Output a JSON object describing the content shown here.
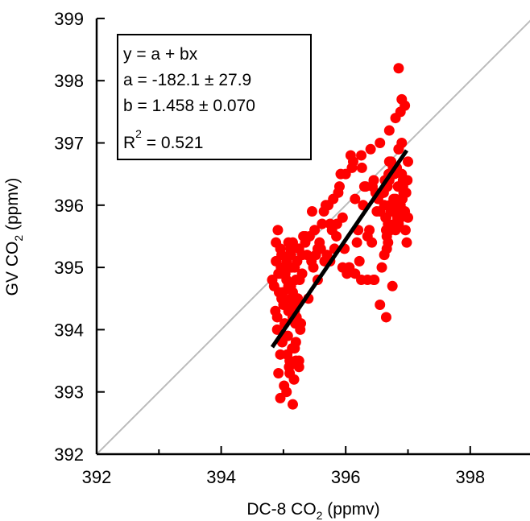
{
  "chart_data": {
    "type": "scatter",
    "title": "",
    "xlabel": {
      "prefix": "DC-8 CO",
      "sub": "2",
      "suffix": " (ppmv)"
    },
    "ylabel": {
      "prefix": "GV CO",
      "sub": "2",
      "suffix": " (ppmv)"
    },
    "xlim": [
      392,
      399
    ],
    "ylim": [
      392,
      399
    ],
    "x_ticks": [
      392,
      394,
      396,
      398
    ],
    "x_tick_labels": [
      "392",
      "394",
      "396",
      "398"
    ],
    "y_ticks": [
      392,
      393,
      394,
      395,
      396,
      397,
      398,
      399
    ],
    "y_tick_labels": [
      "392",
      "393",
      "394",
      "395",
      "396",
      "397",
      "398",
      "399"
    ],
    "grid": false,
    "colors": {
      "points": "#ff0000",
      "fit_line": "#000000",
      "one_to_one_line": "#bbbbbb"
    },
    "fit_box": {
      "line1": "y = a + bx",
      "line2": "a = -182.1 ± 27.9",
      "line3": "b = 1.458 ± 0.070",
      "r2_prefix": "R",
      "r2_sup": "2",
      "r2_suffix": " = 0.521"
    },
    "fit_line": {
      "x": [
        394.82,
        396.98
      ],
      "y": [
        393.72,
        396.88
      ]
    },
    "one_to_one_line": {
      "x": [
        392,
        399
      ],
      "y": [
        392,
        399
      ]
    },
    "series": [
      {
        "marker": "circle",
        "x": [
          394.85,
          394.88,
          394.9,
          394.92,
          394.95,
          394.97,
          395.0,
          395.02,
          395.05,
          395.08,
          395.1,
          395.12,
          395.15,
          395.18,
          395.2,
          395.22,
          395.25,
          395.28,
          395.3,
          395.32,
          394.9,
          394.95,
          395.0,
          395.05,
          395.1,
          395.15,
          395.2,
          395.25,
          395.3,
          394.88,
          394.93,
          394.98,
          395.03,
          395.08,
          395.13,
          395.18,
          395.23,
          394.92,
          394.97,
          395.02,
          395.07,
          395.12,
          395.17,
          395.22,
          395.27,
          394.87,
          394.96,
          395.06,
          395.16,
          395.26,
          394.91,
          395.01,
          395.11,
          395.21,
          394.95,
          395.05,
          395.15,
          395.25,
          394.99,
          395.09,
          395.19,
          394.82,
          395.35,
          395.4,
          395.45,
          395.5,
          395.55,
          395.6,
          395.65,
          395.7,
          395.75,
          395.8,
          395.85,
          395.9,
          395.95,
          396.0,
          396.05,
          396.1,
          396.15,
          396.2,
          396.25,
          396.3,
          396.35,
          396.4,
          396.45,
          396.5,
          396.55,
          396.6,
          396.65,
          396.7,
          396.75,
          396.8,
          396.85,
          396.9,
          396.95,
          397.0,
          395.38,
          395.48,
          395.58,
          395.68,
          395.78,
          395.88,
          395.98,
          396.08,
          396.18,
          396.28,
          396.38,
          396.48,
          396.58,
          396.68,
          396.78,
          396.88,
          396.98,
          395.42,
          395.52,
          395.62,
          395.72,
          395.82,
          395.92,
          396.02,
          396.12,
          396.22,
          396.32,
          396.42,
          396.52,
          396.62,
          396.72,
          396.82,
          396.92,
          395.46,
          395.66,
          395.86,
          396.06,
          396.26,
          396.46,
          396.66,
          396.86,
          396.6,
          396.65,
          396.7,
          396.75,
          396.8,
          396.85,
          396.9,
          396.95,
          397.0,
          396.62,
          396.67,
          396.72,
          396.77,
          396.82,
          396.87,
          396.92,
          396.97,
          396.64,
          396.69,
          396.74,
          396.79,
          396.84,
          396.89,
          396.94,
          396.99,
          396.61,
          396.66,
          396.71,
          396.76,
          396.81,
          396.86,
          396.91,
          396.96,
          396.63,
          396.73,
          396.83,
          396.93,
          396.68,
          396.78,
          396.88,
          396.98,
          396.43,
          396.55,
          396.85,
          396.88,
          396.9,
          396.95,
          396.8,
          396.7,
          396.9,
          396.85,
          396.75,
          396.65,
          396.55,
          396.45,
          396.35,
          396.25,
          396.15,
          395.95,
          395.75,
          395.55,
          395.35,
          395.15,
          395.1,
          395.05,
          395.0,
          394.95,
          395.08,
          395.12,
          395.18,
          395.22,
          395.02,
          394.98,
          395.14,
          395.06,
          395.2,
          395.1
        ],
        "y": [
          394.7,
          395.1,
          394.2,
          394.9,
          395.3,
          394.5,
          395.0,
          393.9,
          394.8,
          395.4,
          394.3,
          395.2,
          394.6,
          395.0,
          393.8,
          394.4,
          395.3,
          394.1,
          394.9,
          395.5,
          394.0,
          393.6,
          394.4,
          395.1,
          393.5,
          394.2,
          394.8,
          393.4,
          395.2,
          395.4,
          394.6,
          393.8,
          394.9,
          394.3,
          395.0,
          393.7,
          394.5,
          393.3,
          395.2,
          394.1,
          393.9,
          394.7,
          393.2,
          395.1,
          394.0,
          394.3,
          395.0,
          393.6,
          394.4,
          394.8,
          395.6,
          393.1,
          395.3,
          394.2,
          392.9,
          393.0,
          392.8,
          393.5,
          394.6,
          393.4,
          394.1,
          394.8,
          395.4,
          394.5,
          395.1,
          395.6,
          394.8,
          395.3,
          395.9,
          395.2,
          395.7,
          396.1,
          395.5,
          396.3,
          395.8,
          396.5,
          395.0,
          396.6,
          396.1,
          395.6,
          396.8,
          396.3,
          395.5,
          396.9,
          396.4,
          395.9,
          397.0,
          396.2,
          395.8,
          396.7,
          396.5,
          395.6,
          396.9,
          396.3,
          395.9,
          396.7,
          395.2,
          395.0,
          395.4,
          396.0,
          395.6,
          396.2,
          395.3,
          396.8,
          395.4,
          396.0,
          395.6,
          396.2,
          395.0,
          395.4,
          396.0,
          395.8,
          396.4,
          395.5,
          395.2,
          395.7,
          396.0,
          395.3,
          396.5,
          394.9,
          396.7,
          395.1,
          396.3,
          395.4,
          396.1,
          395.2,
          395.9,
          396.0,
          396.3,
          395.9,
          395.1,
          395.7,
          395.0,
          396.6,
          394.8,
          395.3,
          395.8,
          396.2,
          395.6,
          396.4,
          395.9,
          396.1,
          395.7,
          396.5,
          396.2,
          395.8,
          396.0,
          396.3,
          395.6,
          396.1,
          396.6,
          395.9,
          396.4,
          396.2,
          395.8,
          396.5,
          396.0,
          395.7,
          396.3,
          396.1,
          395.9,
          396.4,
          396.2,
          395.5,
          396.0,
          396.6,
          395.9,
          396.3,
          396.1,
          395.6,
          396.4,
          396.7,
          395.8,
          396.2,
          395.7,
          396.5,
          396.0,
          395.4,
          396.3,
          395.9,
          398.2,
          397.5,
          397.7,
          397.6,
          397.4,
          397.2,
          397.0,
          396.9,
          394.7,
          394.2,
          394.4,
          394.8,
          394.8,
          394.8,
          394.9,
          395.0,
          395.1,
          395.3,
          395.5,
          395.4,
          395.2,
          395.1,
          395.0,
          394.9,
          394.7,
          394.5,
          394.3,
          394.1,
          393.9,
          393.8,
          393.7,
          393.6,
          393.5,
          393.3
        ]
      }
    ]
  }
}
